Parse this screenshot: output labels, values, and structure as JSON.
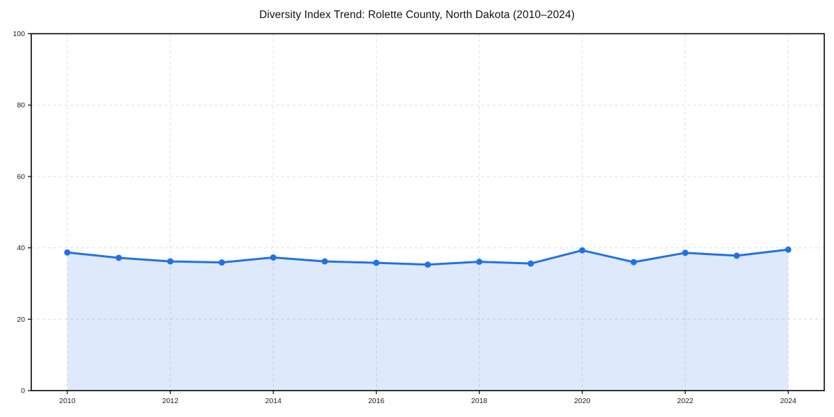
{
  "chart": {
    "title": "Diversity Index Trend: Rolette County, North Dakota (2010–2024)"
  },
  "chart_data": {
    "type": "line",
    "title": "Diversity Index Trend: Rolette County, North Dakota (2010–2024)",
    "series_name": "Diversity Index",
    "x": [
      2010,
      2011,
      2012,
      2013,
      2014,
      2015,
      2016,
      2017,
      2018,
      2019,
      2020,
      2021,
      2022,
      2023,
      2024
    ],
    "values": [
      38.7,
      37.2,
      36.2,
      35.9,
      37.3,
      36.2,
      35.8,
      35.3,
      36.1,
      35.6,
      39.3,
      36.0,
      38.6,
      37.8,
      39.5
    ],
    "xlabel": "",
    "ylabel": "",
    "xlim": [
      2009.3,
      2024.7
    ],
    "ylim": [
      0,
      100
    ],
    "xticks": [
      2010,
      2012,
      2014,
      2016,
      2018,
      2020,
      2022,
      2024
    ],
    "yticks": [
      0,
      20,
      40,
      60,
      80,
      100
    ],
    "grid": true,
    "grid_style": "dashed",
    "legend": "none",
    "colors": {
      "line": "#2170e8",
      "marker": "#2170e8",
      "fill": "rgba(33, 112, 232, 0.15)",
      "grid": "#dcdcdc",
      "axis_border": "#000000",
      "tick_text": "#1a1a1a"
    }
  }
}
